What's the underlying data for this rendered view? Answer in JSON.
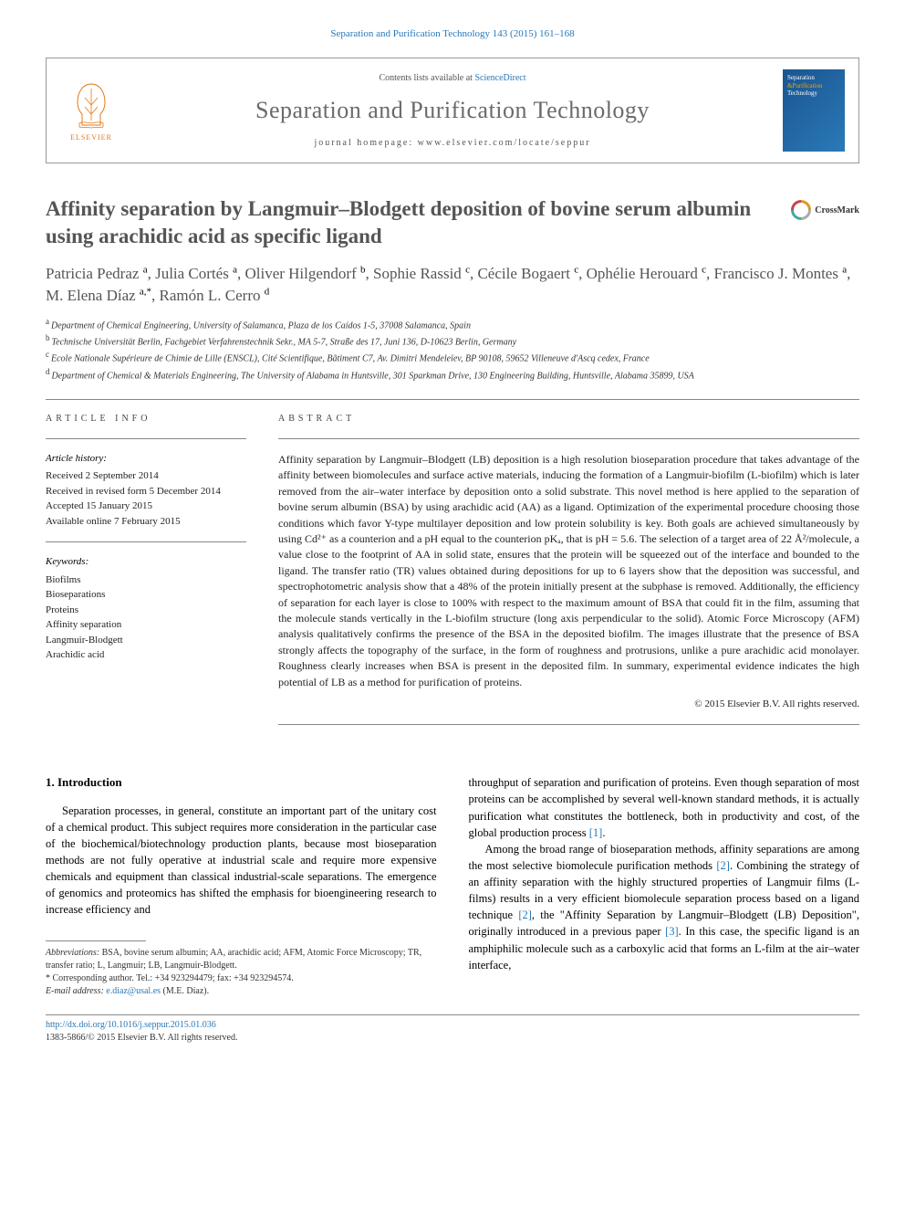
{
  "header": {
    "citation": "Separation and Purification Technology 143 (2015) 161–168",
    "contents_prefix": "Contents lists available at ",
    "contents_link": "ScienceDirect",
    "journal_name": "Separation and Purification Technology",
    "homepage_prefix": "journal homepage: ",
    "homepage_url": "www.elsevier.com/locate/seppur",
    "elsevier_label": "ELSEVIER",
    "cover_line1": "Separation",
    "cover_line2": "&Purification",
    "cover_line3": "Technology"
  },
  "article": {
    "title": "Affinity separation by Langmuir–Blodgett deposition of bovine serum albumin using arachidic acid as specific ligand",
    "crossmark_label": "CrossMark",
    "authors_html": "Patricia Pedraz <sup>a</sup>, Julia Cortés <sup>a</sup>, Oliver Hilgendorf <sup>b</sup>, Sophie Rassid <sup>c</sup>, Cécile Bogaert <sup>c</sup>, Ophélie Herouard <sup>c</sup>, Francisco J. Montes <sup>a</sup>, M. Elena Díaz <sup>a,</sup><sup class='star-sup'>*</sup>, Ramón L. Cerro <sup>d</sup>",
    "affiliations": {
      "a": "Department of Chemical Engineering, University of Salamanca, Plaza de los Caídos 1-5, 37008 Salamanca, Spain",
      "b": "Technische Universität Berlin, Fachgebiet Verfahrenstechnik Sekr., MA 5-7, Straße des 17, Juni 136, D-10623 Berlin, Germany",
      "c": "Ecole Nationale Supérieure de Chimie de Lille (ENSCL), Cité Scientifique, Bâtiment C7, Av. Dimitri Mendeleïev, BP 90108, 59652 Villeneuve d'Ascq cedex, France",
      "d": "Department of Chemical & Materials Engineering, The University of Alabama in Huntsville, 301 Sparkman Drive, 130 Engineering Building, Huntsville, Alabama 35899, USA"
    }
  },
  "article_info": {
    "heading": "ARTICLE INFO",
    "history_label": "Article history:",
    "history": "Received 2 September 2014\nReceived in revised form 5 December 2014\nAccepted 15 January 2015\nAvailable online 7 February 2015",
    "keywords_label": "Keywords:",
    "keywords": "Biofilms\nBioseparations\nProteins\nAffinity separation\nLangmuir-Blodgett\nArachidic acid"
  },
  "abstract": {
    "heading": "ABSTRACT",
    "text": "Affinity separation by Langmuir–Blodgett (LB) deposition is a high resolution bioseparation procedure that takes advantage of the affinity between biomolecules and surface active materials, inducing the formation of a Langmuir-biofilm (L-biofilm) which is later removed from the air–water interface by deposition onto a solid substrate. This novel method is here applied to the separation of bovine serum albumin (BSA) by using arachidic acid (AA) as a ligand. Optimization of the experimental procedure choosing those conditions which favor Y-type multilayer deposition and low protein solubility is key. Both goals are achieved simultaneously by using Cd²⁺ as a counterion and a pH equal to the counterion pKₐ, that is pH = 5.6. The selection of a target area of 22 Å²/molecule, a value close to the footprint of AA in solid state, ensures that the protein will be squeezed out of the interface and bounded to the ligand. The transfer ratio (TR) values obtained during depositions for up to 6 layers show that the deposition was successful, and spectrophotometric analysis show that a 48% of the protein initially present at the subphase is removed. Additionally, the efficiency of separation for each layer is close to 100% with respect to the maximum amount of BSA that could fit in the film, assuming that the molecule stands vertically in the L-biofilm structure (long axis perpendicular to the solid). Atomic Force Microscopy (AFM) analysis qualitatively confirms the presence of the BSA in the deposited biofilm. The images illustrate that the presence of BSA strongly affects the topography of the surface, in the form of roughness and protrusions, unlike a pure arachidic acid monolayer. Roughness clearly increases when BSA is present in the deposited film. In summary, experimental evidence indicates the high potential of LB as a method for purification of proteins.",
    "copyright": "© 2015 Elsevier B.V. All rights reserved."
  },
  "body": {
    "intro_heading": "1. Introduction",
    "para1": "Separation processes, in general, constitute an important part of the unitary cost of a chemical product. This subject requires more consideration in the particular case of the biochemical/biotechnology production plants, because most bioseparation methods are not fully operative at industrial scale and require more expensive chemicals and equipment than classical industrial-scale separations. The emergence of genomics and proteomics has shifted the emphasis for bioengineering research to increase efficiency and",
    "para2_pre": "throughput of separation and purification of proteins. Even though separation of most proteins can be accomplished by several well-known standard methods, it is actually purification what constitutes the bottleneck, both in productivity and cost, of the global production process ",
    "ref1": "[1]",
    "para2_post": ".",
    "para3_pre": "Among the broad range of bioseparation methods, affinity separations are among the most selective biomolecule purification methods ",
    "ref2": "[2]",
    "para3_mid1": ". Combining the strategy of an affinity separation with the highly structured properties of Langmuir films (L-films) results in a very efficient biomolecule separation process based on a ligand technique ",
    "ref2b": "[2]",
    "para3_mid2": ", the \"Affinity Separation by Langmuir–Blodgett (LB) Deposition\", originally introduced in a previous paper ",
    "ref3": "[3]",
    "para3_post": ". In this case, the specific ligand is an amphiphilic molecule such as a carboxylic acid that forms an L-film at the air–water interface,"
  },
  "footnotes": {
    "abbrev_label": "Abbreviations:",
    "abbrev": " BSA, bovine serum albumin; AA, arachidic acid; AFM, Atomic Force Microscopy; TR, transfer ratio; L, Langmuir; LB, Langmuir-Blodgett.",
    "corr_label": "* Corresponding author. ",
    "corr_text": "Tel.: +34 923294479; fax: +34 923294574.",
    "email_label": "E-mail address: ",
    "email": "e.diaz@usal.es",
    "email_suffix": " (M.E. Díaz)."
  },
  "footer": {
    "doi": "http://dx.doi.org/10.1016/j.seppur.2015.01.036",
    "issn_copyright": "1383-5866/© 2015 Elsevier B.V. All rights reserved."
  },
  "colors": {
    "link_blue": "#2878b8",
    "elsevier_orange": "#e67817",
    "title_gray": "#555555",
    "text_black": "#222222"
  }
}
